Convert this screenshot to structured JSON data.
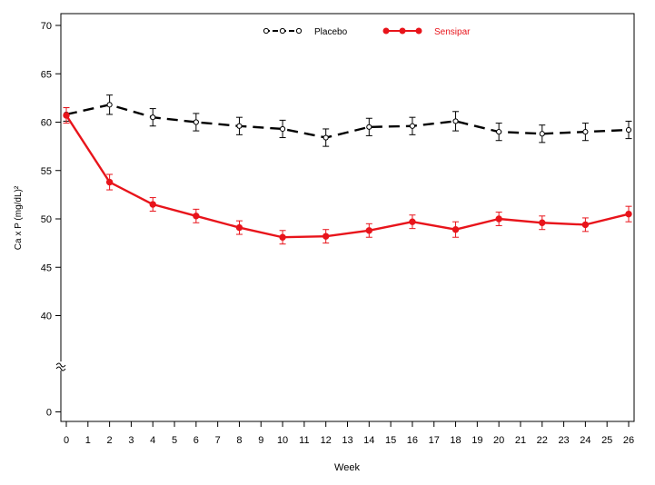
{
  "chart_data": {
    "type": "line",
    "xlabel": "Week",
    "ylabel": "Ca x P (mg/dL)²",
    "x_ticks": [
      0,
      1,
      2,
      3,
      4,
      5,
      6,
      7,
      8,
      9,
      10,
      11,
      12,
      13,
      14,
      15,
      16,
      17,
      18,
      19,
      20,
      21,
      22,
      23,
      24,
      25,
      26
    ],
    "y_ticks": [
      0,
      40,
      45,
      50,
      55,
      60,
      65,
      70
    ],
    "xlim": [
      0,
      26
    ],
    "ylim": [
      0,
      70
    ],
    "y_axis_break": [
      0,
      40
    ],
    "grid": false,
    "legend_position": "top-center",
    "series": [
      {
        "name": "Placebo",
        "color": "#000000",
        "line_style": "dashed",
        "marker": "open-circle",
        "x": [
          0,
          2,
          4,
          6,
          8,
          10,
          12,
          14,
          16,
          18,
          20,
          22,
          24,
          26
        ],
        "y": [
          60.8,
          61.8,
          60.5,
          60.0,
          59.6,
          59.3,
          58.4,
          59.5,
          59.6,
          60.1,
          59.0,
          58.8,
          59.0,
          59.2
        ],
        "error": [
          0.7,
          1.0,
          0.9,
          0.9,
          0.9,
          0.9,
          0.9,
          0.9,
          0.9,
          1.0,
          0.9,
          0.9,
          0.9,
          0.9
        ]
      },
      {
        "name": "Sensipar",
        "color": "#e8141b",
        "line_style": "solid",
        "marker": "filled-circle",
        "x": [
          0,
          2,
          4,
          6,
          8,
          10,
          12,
          14,
          16,
          18,
          20,
          22,
          24,
          26
        ],
        "y": [
          60.7,
          53.8,
          51.5,
          50.3,
          49.1,
          48.1,
          48.2,
          48.8,
          49.7,
          48.9,
          50.0,
          49.6,
          49.4,
          50.5
        ],
        "error": [
          0.8,
          0.8,
          0.7,
          0.7,
          0.7,
          0.7,
          0.7,
          0.7,
          0.7,
          0.8,
          0.7,
          0.7,
          0.7,
          0.8
        ]
      }
    ]
  }
}
